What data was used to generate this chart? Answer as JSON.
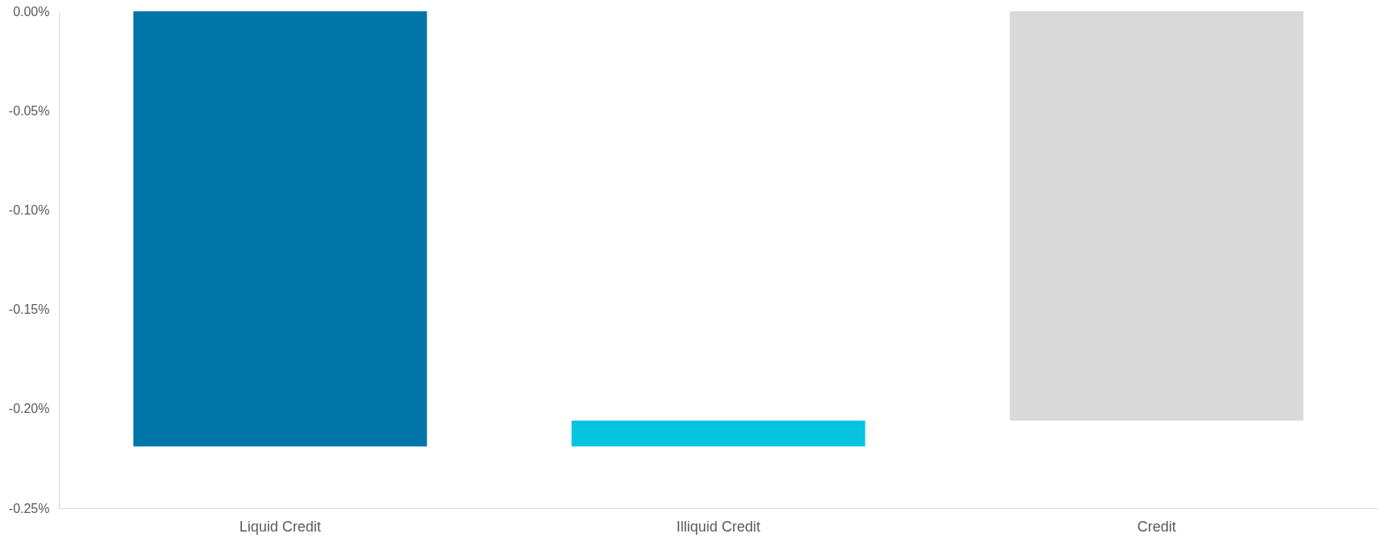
{
  "chart_data": {
    "type": "bar",
    "categories": [
      "Liquid Credit",
      "Illiquid Credit",
      "Credit"
    ],
    "values": [
      -0.219,
      0.013,
      -0.206
    ],
    "base": [
      0,
      -0.219,
      0
    ],
    "colors": [
      "#0075a8",
      "#06c3e0",
      "#d9d9d9"
    ],
    "ylim": [
      -0.25,
      0
    ],
    "yticks": [
      {
        "value": 0,
        "label": "0.00%"
      },
      {
        "value": -0.05,
        "label": "-0.05%"
      },
      {
        "value": -0.1,
        "label": "-0.10%"
      },
      {
        "value": -0.15,
        "label": "-0.15%"
      },
      {
        "value": -0.2,
        "label": "-0.20%"
      },
      {
        "value": -0.25,
        "label": "-0.25%"
      }
    ],
    "grid": false,
    "legend": false
  }
}
